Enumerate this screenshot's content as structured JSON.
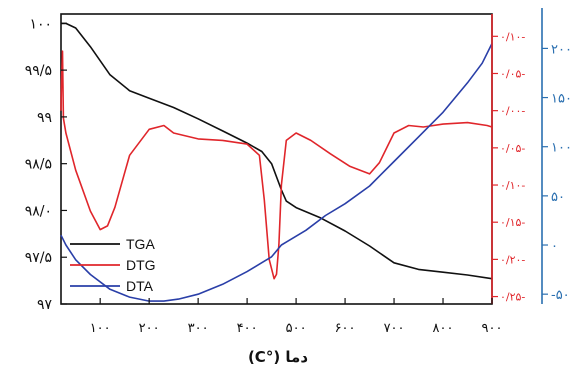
{
  "chart_data": {
    "type": "line",
    "xlabel": "(C°) دما",
    "x_ticks": [
      {
        "value": 100,
        "label": "۱۰۰"
      },
      {
        "value": 200,
        "label": "۲۰۰"
      },
      {
        "value": 300,
        "label": "۳۰۰"
      },
      {
        "value": 400,
        "label": "۴۰۰"
      },
      {
        "value": 500,
        "label": "۵۰۰"
      },
      {
        "value": 600,
        "label": "۶۰۰"
      },
      {
        "value": 700,
        "label": "۷۰۰"
      },
      {
        "value": 800,
        "label": "۸۰۰"
      },
      {
        "value": 900,
        "label": "۹۰۰"
      }
    ],
    "xlim": [
      20,
      900
    ],
    "axes": {
      "left": {
        "ylim": [
          97,
          100.1
        ],
        "ticks": [
          {
            "value": 100,
            "label": "۱۰۰"
          },
          {
            "value": 99.5,
            "label": "۹۹/۵"
          },
          {
            "value": 99,
            "label": "۹۹"
          },
          {
            "value": 98.5,
            "label": "۹۸/۵"
          },
          {
            "value": 98,
            "label": "۹۸/۰"
          },
          {
            "value": 97.5,
            "label": "۹۷/۵"
          },
          {
            "value": 97,
            "label": "۹۷"
          }
        ]
      },
      "right_inner": {
        "color": "#e0262b",
        "ylim": [
          -0.26,
          0.13
        ],
        "ticks": [
          {
            "value": 0.1,
            "label": "۰/۱۰-"
          },
          {
            "value": 0.05,
            "label": "۰/۰۵-"
          },
          {
            "value": 0,
            "label": "۰/۰۰-"
          },
          {
            "value": -0.05,
            "label": "۰/۰۵-"
          },
          {
            "value": -0.1,
            "label": "۰/۱۰-"
          },
          {
            "value": -0.15,
            "label": "۰/۱۵-"
          },
          {
            "value": -0.2,
            "label": "۰/۲۰-"
          },
          {
            "value": -0.25,
            "label": "۰/۲۵-"
          }
        ]
      },
      "right_outer": {
        "color": "#2a6fb0",
        "ylim": [
          -60,
          235
        ],
        "ticks": [
          {
            "value": -50,
            "label": "-۵۰"
          },
          {
            "value": 0,
            "label": "۰"
          },
          {
            "value": 50,
            "label": "۵۰"
          },
          {
            "value": 100,
            "label": "۱۰۰"
          },
          {
            "value": 150,
            "label": "۱۵۰"
          },
          {
            "value": 200,
            "label": "۲۰۰"
          }
        ]
      }
    },
    "series": [
      {
        "name": "TGA",
        "axis": "left",
        "color": "#111111",
        "x": [
          20,
          30,
          50,
          80,
          120,
          160,
          200,
          250,
          300,
          350,
          400,
          430,
          450,
          470,
          480,
          500,
          550,
          600,
          650,
          700,
          750,
          800,
          850,
          900
        ],
        "y": [
          100.0,
          100.0,
          99.95,
          99.75,
          99.45,
          99.28,
          99.2,
          99.1,
          98.98,
          98.85,
          98.72,
          98.63,
          98.5,
          98.22,
          98.1,
          98.03,
          97.92,
          97.78,
          97.62,
          97.44,
          97.37,
          97.34,
          97.31,
          97.27
        ]
      },
      {
        "name": "DTG",
        "axis": "right_inner",
        "color": "#e0262b",
        "x": [
          20,
          21,
          23,
          25,
          30,
          50,
          80,
          100,
          115,
          130,
          160,
          200,
          230,
          250,
          300,
          350,
          400,
          425,
          435,
          445,
          455,
          460,
          465,
          470,
          480,
          500,
          530,
          570,
          610,
          650,
          670,
          700,
          730,
          760,
          800,
          850,
          890,
          900
        ],
        "y": [
          0.0,
          0.04,
          0.08,
          -0.01,
          -0.03,
          -0.08,
          -0.135,
          -0.16,
          -0.155,
          -0.13,
          -0.06,
          -0.025,
          -0.02,
          -0.03,
          -0.038,
          -0.04,
          -0.045,
          -0.06,
          -0.12,
          -0.2,
          -0.226,
          -0.22,
          -0.18,
          -0.1,
          -0.04,
          -0.03,
          -0.04,
          -0.058,
          -0.075,
          -0.085,
          -0.07,
          -0.03,
          -0.02,
          -0.022,
          -0.018,
          -0.016,
          -0.02,
          -0.022
        ]
      },
      {
        "name": "DTA",
        "axis": "right_outer",
        "color": "#2a3fa8",
        "x": [
          20,
          30,
          50,
          80,
          120,
          160,
          200,
          230,
          260,
          300,
          350,
          400,
          430,
          450,
          470,
          480,
          520,
          560,
          600,
          650,
          700,
          750,
          800,
          850,
          880,
          900
        ],
        "y": [
          10,
          0,
          -15,
          -30,
          -45,
          -53,
          -57,
          -57,
          -55,
          -50,
          -40,
          -27,
          -18,
          -12,
          0,
          3,
          15,
          30,
          42,
          60,
          85,
          110,
          135,
          165,
          185,
          205
        ]
      }
    ],
    "legend": {
      "placement": "lower-left",
      "entries": [
        "TGA",
        "DTG",
        "DTA"
      ]
    },
    "grid": false
  }
}
